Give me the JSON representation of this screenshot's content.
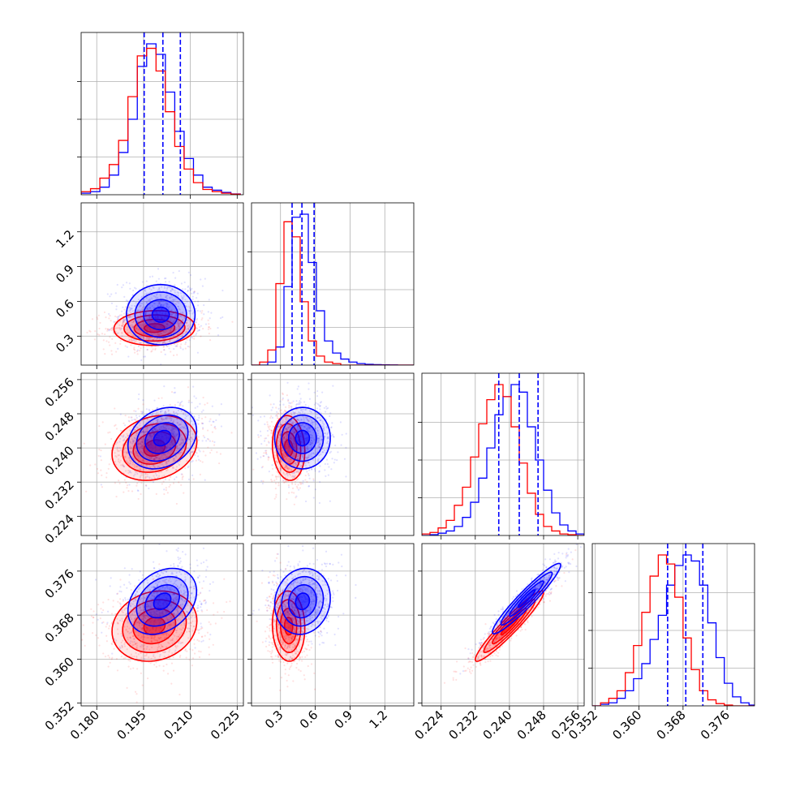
{
  "chart_data": {
    "type": "corner",
    "grid": true,
    "series": [
      {
        "name": "",
        "color": "#0000ff"
      },
      {
        "name": "",
        "color": "#ff0000"
      }
    ],
    "parameters": [
      {
        "range": [
          0.175,
          0.227
        ],
        "ticks": [
          "0.180",
          "0.195",
          "0.210",
          "0.225"
        ],
        "tick_values": [
          0.18,
          0.195,
          0.21,
          0.225
        ]
      },
      {
        "range": [
          0.05,
          1.45
        ],
        "ticks": [
          "0.3",
          "0.6",
          "0.9",
          "1.2"
        ],
        "tick_values": [
          0.3,
          0.6,
          0.9,
          1.2
        ]
      },
      {
        "range": [
          0.2195,
          0.2575
        ],
        "ticks": [
          "0.224",
          "0.232",
          "0.240",
          "0.248",
          "0.256"
        ],
        "tick_values": [
          0.224,
          0.232,
          0.24,
          0.248,
          0.256
        ]
      },
      {
        "range": [
          0.3515,
          0.381
        ],
        "ticks": [
          "0.352",
          "0.360",
          "0.368",
          "0.376"
        ],
        "tick_values": [
          0.352,
          0.36,
          0.368,
          0.376
        ]
      }
    ],
    "diagonal": [
      {
        "param": 0,
        "quantile_lines": [
          0.1952,
          0.2012,
          0.2068
        ],
        "bin_edges": [
          0.175,
          0.178,
          0.181,
          0.184,
          0.187,
          0.19,
          0.193,
          0.196,
          0.199,
          0.202,
          0.205,
          0.208,
          0.211,
          0.214,
          0.217,
          0.22,
          0.223,
          0.226
        ],
        "blue": [
          0.01,
          0.02,
          0.05,
          0.13,
          0.28,
          0.5,
          0.85,
          1.0,
          0.93,
          0.68,
          0.42,
          0.24,
          0.13,
          0.05,
          0.03,
          0.015,
          0.005
        ],
        "red": [
          0.02,
          0.04,
          0.11,
          0.2,
          0.36,
          0.65,
          0.92,
          0.97,
          0.82,
          0.55,
          0.32,
          0.17,
          0.08,
          0.035,
          0.02,
          0.01,
          0.004
        ]
      },
      {
        "param": 1,
        "quantile_lines": [
          0.4,
          0.485,
          0.59
        ],
        "bin_edges": [
          0.05,
          0.12,
          0.19,
          0.26,
          0.33,
          0.4,
          0.47,
          0.54,
          0.61,
          0.68,
          0.75,
          0.82,
          0.89,
          0.96,
          1.03,
          1.1,
          1.17,
          1.24,
          1.31,
          1.38,
          1.45
        ],
        "blue": [
          0.0,
          0.0,
          0.02,
          0.12,
          0.52,
          0.98,
          1.0,
          0.68,
          0.36,
          0.16,
          0.08,
          0.04,
          0.02,
          0.01,
          0.005,
          0.003,
          0.002,
          0.001,
          0.0,
          0.0
        ],
        "red": [
          0.0,
          0.02,
          0.1,
          0.54,
          0.95,
          0.85,
          0.42,
          0.16,
          0.06,
          0.02,
          0.01,
          0.0,
          0.0,
          0.0,
          0.0,
          0.0,
          0.0,
          0.0,
          0.0,
          0.0
        ]
      },
      {
        "param": 2,
        "quantile_lines": [
          0.2375,
          0.2423,
          0.2467
        ],
        "bin_edges": [
          0.2195,
          0.2214,
          0.2233,
          0.2252,
          0.2271,
          0.229,
          0.2309,
          0.2328,
          0.2347,
          0.2366,
          0.2385,
          0.2404,
          0.2423,
          0.2442,
          0.2461,
          0.248,
          0.2499,
          0.2518,
          0.2537,
          0.2556,
          0.2575
        ],
        "blue": [
          0.0,
          0.005,
          0.015,
          0.03,
          0.06,
          0.12,
          0.22,
          0.38,
          0.58,
          0.8,
          0.92,
          1.0,
          0.95,
          0.72,
          0.5,
          0.3,
          0.15,
          0.07,
          0.03,
          0.01
        ],
        "red": [
          0.01,
          0.02,
          0.05,
          0.1,
          0.2,
          0.32,
          0.52,
          0.74,
          0.9,
          1.0,
          0.92,
          0.72,
          0.48,
          0.28,
          0.14,
          0.06,
          0.03,
          0.01,
          0.005,
          0.0
        ]
      },
      {
        "param": 3,
        "quantile_lines": [
          0.3652,
          0.3685,
          0.3716
        ],
        "bin_edges": [
          0.3515,
          0.353,
          0.3545,
          0.356,
          0.3575,
          0.359,
          0.3605,
          0.362,
          0.3635,
          0.365,
          0.3665,
          0.368,
          0.3695,
          0.371,
          0.3725,
          0.374,
          0.3755,
          0.377,
          0.3785,
          0.38,
          0.381
        ],
        "blue": [
          0.0,
          0.01,
          0.02,
          0.05,
          0.1,
          0.18,
          0.28,
          0.44,
          0.6,
          0.8,
          0.93,
          1.0,
          0.96,
          0.8,
          0.55,
          0.32,
          0.15,
          0.06,
          0.02,
          0.005
        ],
        "red": [
          0.0,
          0.02,
          0.05,
          0.1,
          0.22,
          0.4,
          0.62,
          0.86,
          1.0,
          0.94,
          0.72,
          0.45,
          0.24,
          0.1,
          0.04,
          0.015,
          0.005,
          0.0,
          0.0,
          0.0
        ]
      }
    ],
    "pairs": [
      {
        "x": 0,
        "y": 1,
        "blue": {
          "mean": [
            0.2005,
            0.485
          ],
          "sd": [
            0.0055,
            0.13
          ],
          "rho": 0.0
        },
        "red": {
          "mean": [
            0.1985,
            0.37
          ],
          "sd": [
            0.0065,
            0.075
          ],
          "rho": 0.05
        }
      },
      {
        "x": 0,
        "y": 2,
        "blue": {
          "mean": [
            0.201,
            0.2423
          ],
          "sd": [
            0.0055,
            0.0036
          ],
          "rho": 0.25
        },
        "red": {
          "mean": [
            0.1985,
            0.24
          ],
          "sd": [
            0.0068,
            0.0038
          ],
          "rho": 0.2
        }
      },
      {
        "x": 1,
        "y": 2,
        "blue": {
          "mean": [
            0.49,
            0.2423
          ],
          "sd": [
            0.12,
            0.0036
          ],
          "rho": 0.0
        },
        "red": {
          "mean": [
            0.37,
            0.24
          ],
          "sd": [
            0.07,
            0.0038
          ],
          "rho": -0.1
        }
      },
      {
        "x": 0,
        "y": 3,
        "blue": {
          "mean": [
            0.201,
            0.3705
          ],
          "sd": [
            0.0055,
            0.003
          ],
          "rho": 0.3
        },
        "red": {
          "mean": [
            0.1985,
            0.366
          ],
          "sd": [
            0.0068,
            0.0032
          ],
          "rho": 0.15
        }
      },
      {
        "x": 1,
        "y": 3,
        "blue": {
          "mean": [
            0.49,
            0.3705
          ],
          "sd": [
            0.12,
            0.003
          ],
          "rho": 0.1
        },
        "red": {
          "mean": [
            0.37,
            0.366
          ],
          "sd": [
            0.07,
            0.0032
          ],
          "rho": -0.05
        }
      },
      {
        "x": 2,
        "y": 3,
        "blue": {
          "mean": [
            0.244,
            0.371
          ],
          "sd": [
            0.004,
            0.0032
          ],
          "rho": 0.95
        },
        "red": {
          "mean": [
            0.24,
            0.366
          ],
          "sd": [
            0.004,
            0.0032
          ],
          "rho": 0.95
        }
      }
    ]
  }
}
